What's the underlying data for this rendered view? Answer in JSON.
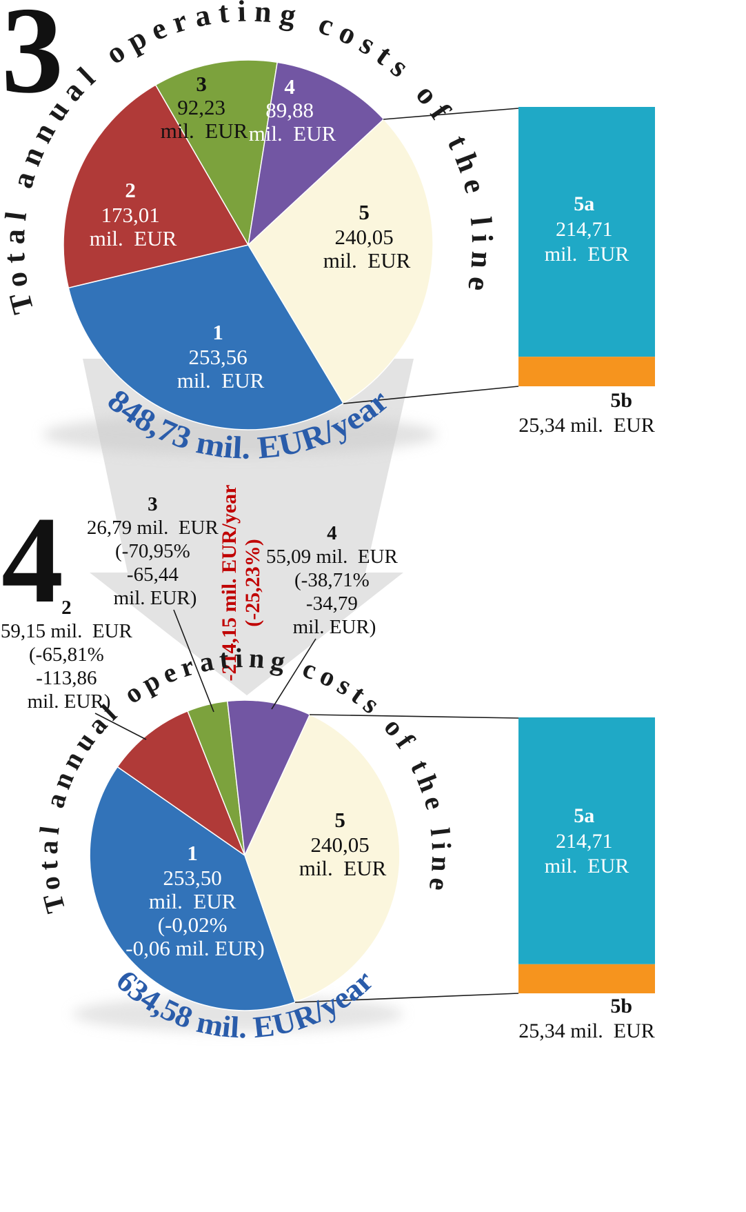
{
  "chart_data": [
    {
      "type": "pie",
      "figure_number": "3",
      "title": "Total annual operating costs of the line",
      "total_label": "848,73 mil. EUR/year",
      "total_value": 848.73,
      "unit": "mil. EUR",
      "start_angle_deg": 149,
      "legend_position": "none",
      "slices": [
        {
          "id": "1",
          "value": 253.56,
          "color": "#3273B9",
          "label_lines": [
            "1",
            "253,56",
            "mil.  EUR"
          ]
        },
        {
          "id": "2",
          "value": 173.01,
          "color": "#B03A38",
          "label_lines": [
            "2",
            "173,01",
            "mil.  EUR"
          ]
        },
        {
          "id": "3",
          "value": 92.23,
          "color": "#7CA23D",
          "label_lines": [
            "3",
            "92,23",
            "mil.  EUR"
          ]
        },
        {
          "id": "4",
          "value": 89.88,
          "color": "#7256A3",
          "label_lines": [
            "4",
            "89,88",
            "mil.  EUR"
          ]
        },
        {
          "id": "5",
          "value": 240.05,
          "color": "#FBF6DD",
          "label_lines": [
            "5",
            "240,05",
            "mil.  EUR"
          ]
        }
      ],
      "bar": {
        "for_slice": "5",
        "segments": [
          {
            "id": "5a",
            "value": 214.71,
            "color": "#1FA9C6",
            "label_lines": [
              "5a",
              "214,71",
              "mil.  EUR"
            ]
          },
          {
            "id": "5b",
            "value": 25.34,
            "color": "#F6941E",
            "label_lines": [
              "5b",
              "25,34 mil.  EUR"
            ]
          }
        ]
      }
    },
    {
      "type": "pie",
      "figure_number": "4",
      "title": "Total annual operating costs of the line",
      "total_label": "634,58 mil. EUR/year",
      "total_value": 634.58,
      "unit": "mil. EUR",
      "start_angle_deg": 161,
      "legend_position": "none",
      "delta_lines": [
        "-214,15 mil. EUR/year",
        "(-25,23%)"
      ],
      "slices": [
        {
          "id": "1",
          "value": 253.5,
          "color": "#3273B9",
          "label_lines": [
            "1",
            "253,50",
            "mil.  EUR",
            "(-0,02%",
            "-0,06 mil. EUR)"
          ]
        },
        {
          "id": "2",
          "value": 59.15,
          "color": "#B03A38",
          "label_lines": []
        },
        {
          "id": "3",
          "value": 26.79,
          "color": "#7CA23D",
          "label_lines": []
        },
        {
          "id": "4",
          "value": 55.09,
          "color": "#7256A3",
          "label_lines": []
        },
        {
          "id": "5",
          "value": 240.05,
          "color": "#FBF6DD",
          "label_lines": [
            "5",
            "240,05",
            "mil.  EUR"
          ]
        }
      ],
      "annotations": [
        {
          "slice": "3",
          "lines": [
            "3",
            "26,79 mil.  EUR",
            "(-70,95%",
            "-65,44",
            "mil. EUR)"
          ]
        },
        {
          "slice": "4",
          "lines": [
            "4",
            "55,09 mil.  EUR",
            "(-38,71%",
            "-34,79",
            "mil. EUR)"
          ]
        },
        {
          "slice": "2",
          "lines": [
            "2",
            "59,15 mil.  EUR",
            "(-65,81%",
            "-113,86",
            "mil. EUR)"
          ]
        }
      ],
      "bar": {
        "for_slice": "5",
        "segments": [
          {
            "id": "5a",
            "value": 214.71,
            "color": "#1FA9C6",
            "label_lines": [
              "5a",
              "214,71",
              "mil.  EUR"
            ]
          },
          {
            "id": "5b",
            "value": 25.34,
            "color": "#F6941E",
            "label_lines": [
              "5b",
              "25,34 mil.  EUR"
            ]
          }
        ]
      }
    }
  ],
  "colors": {
    "title_text": "#1B1B1B",
    "total_text": "#2A5CAA",
    "delta_text": "#C00000",
    "arrow_fill": "#E3E3E3"
  }
}
